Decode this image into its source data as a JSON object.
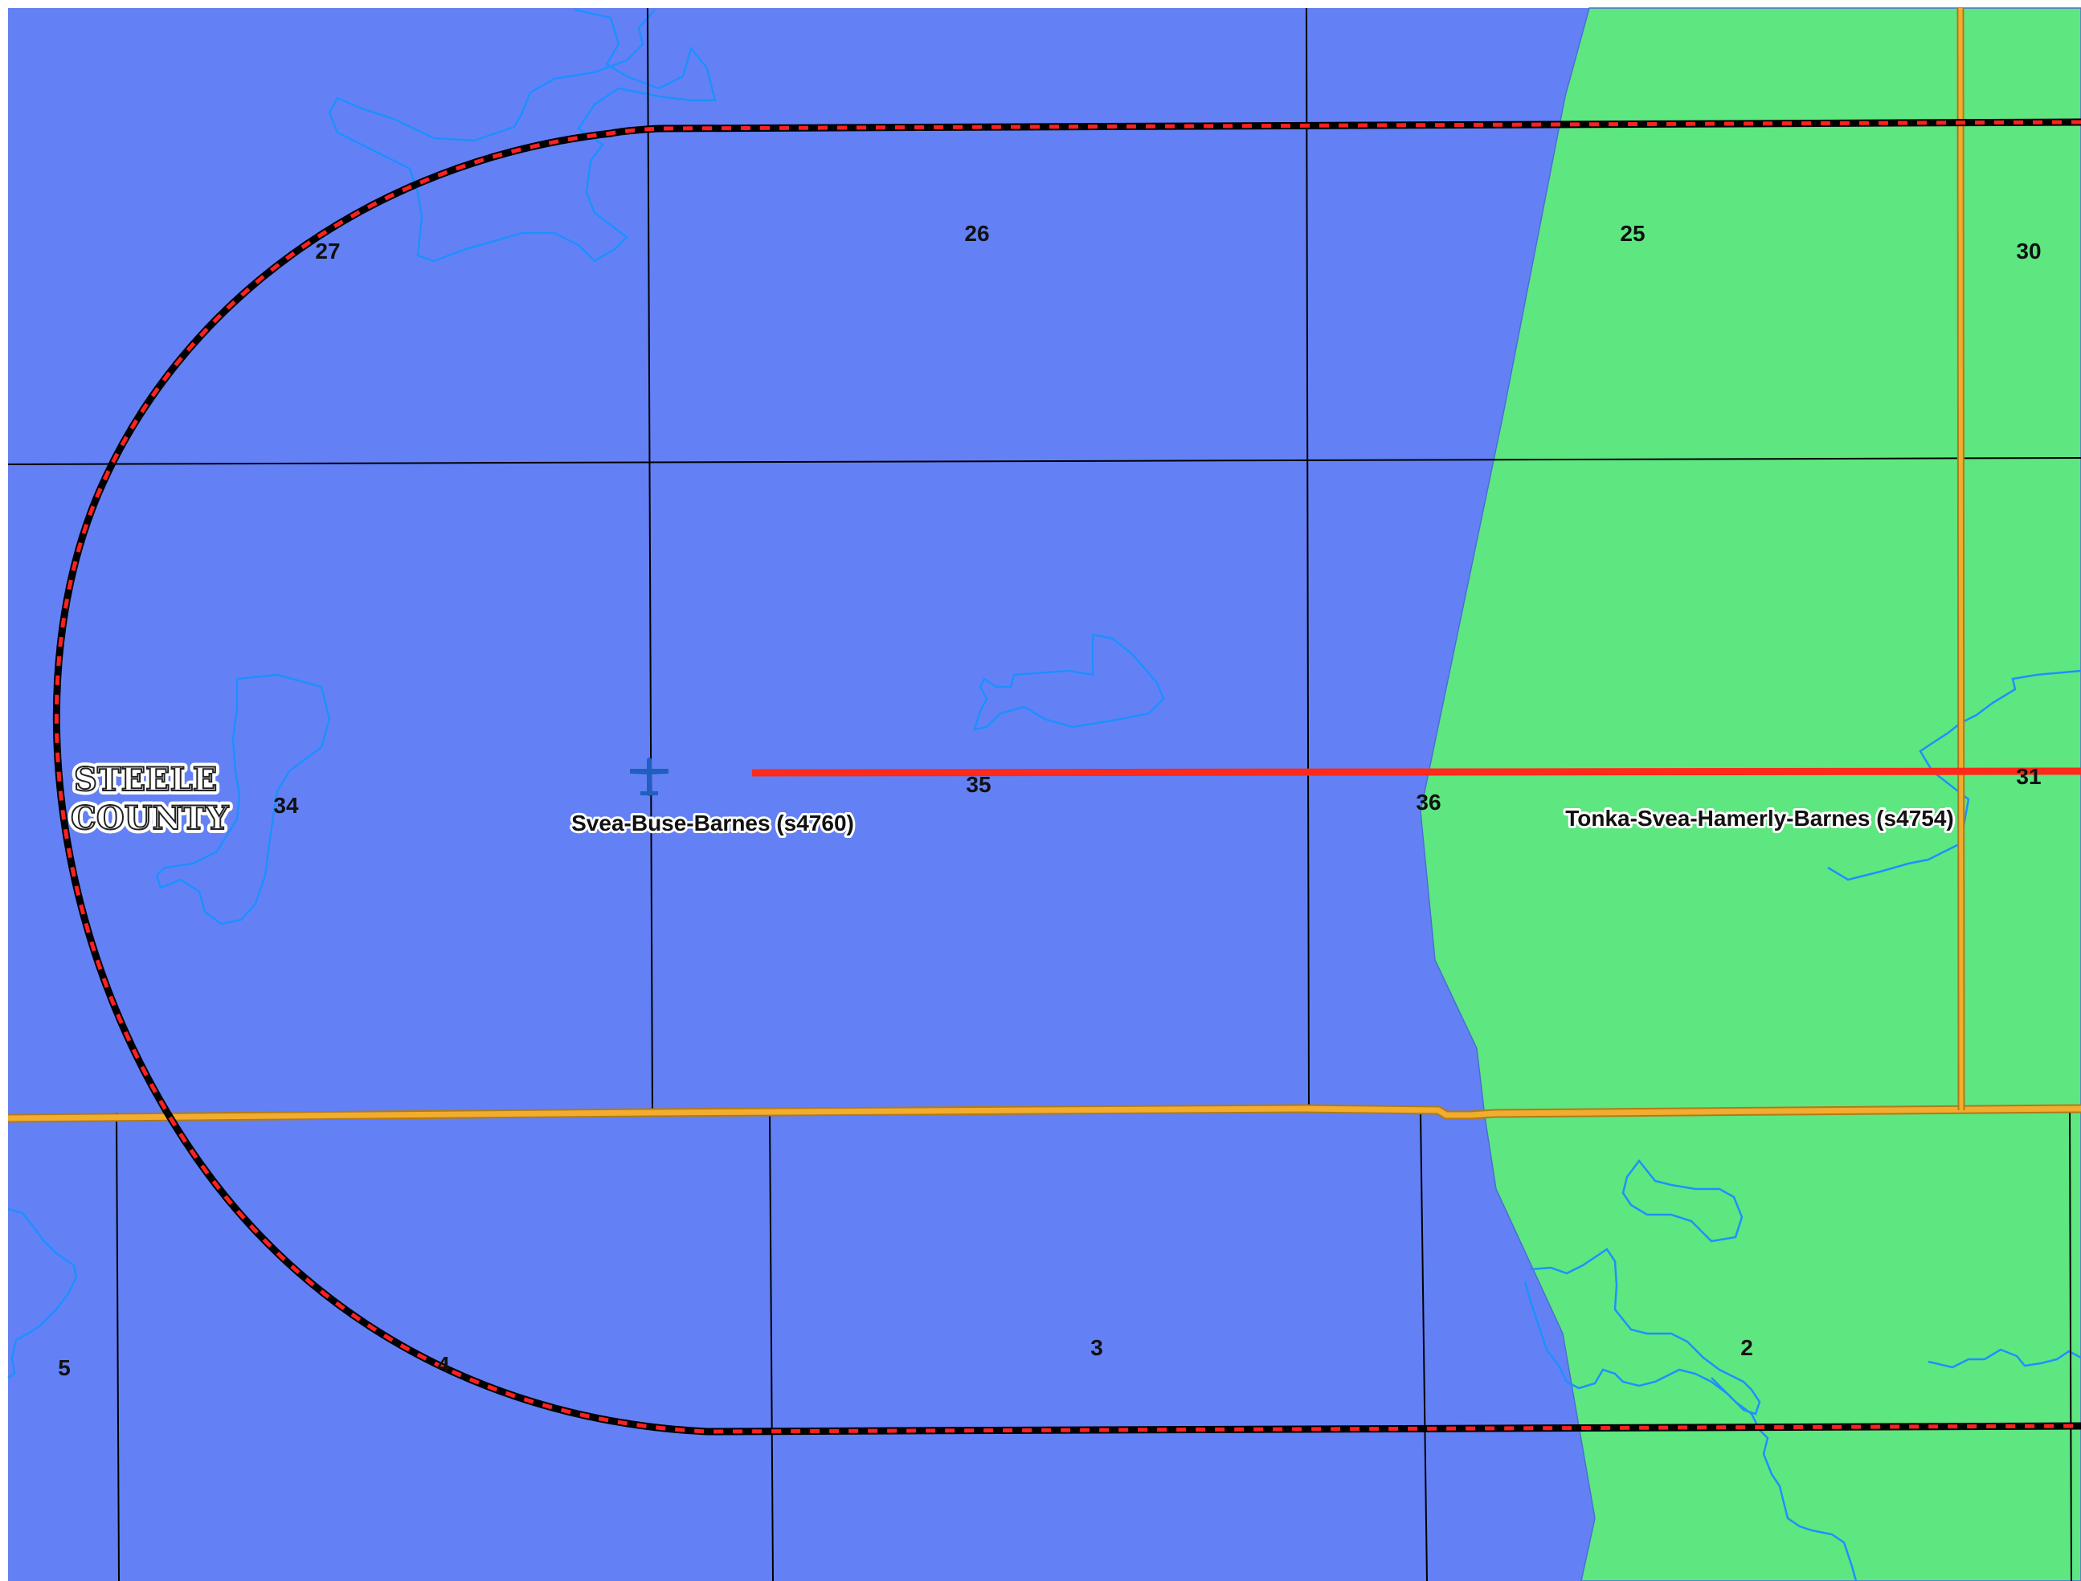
{
  "colors": {
    "district_blue": "#6381f5",
    "district_green": "#5ee681",
    "section_line": "#000000",
    "water": "#1e90ff",
    "road_orange": "#f0a830",
    "route_red": "#ff2a1a",
    "buffer_dash_red": "#ff2020",
    "buffer_dash_black": "#000000",
    "airport_icon": "#1f5fbf"
  },
  "county": {
    "line1": "STEELE",
    "line2": "COUNTY"
  },
  "districts": {
    "west_label": "Svea-Buse-Barnes (s4760)",
    "east_label": "Tonka-Svea-Hamerly-Barnes (s4754)"
  },
  "sections": [
    "27",
    "26",
    "25",
    "30",
    "34",
    "35",
    "36",
    "31",
    "5",
    "4",
    "3",
    "2"
  ],
  "icons": {
    "airport": "airplane-icon"
  }
}
